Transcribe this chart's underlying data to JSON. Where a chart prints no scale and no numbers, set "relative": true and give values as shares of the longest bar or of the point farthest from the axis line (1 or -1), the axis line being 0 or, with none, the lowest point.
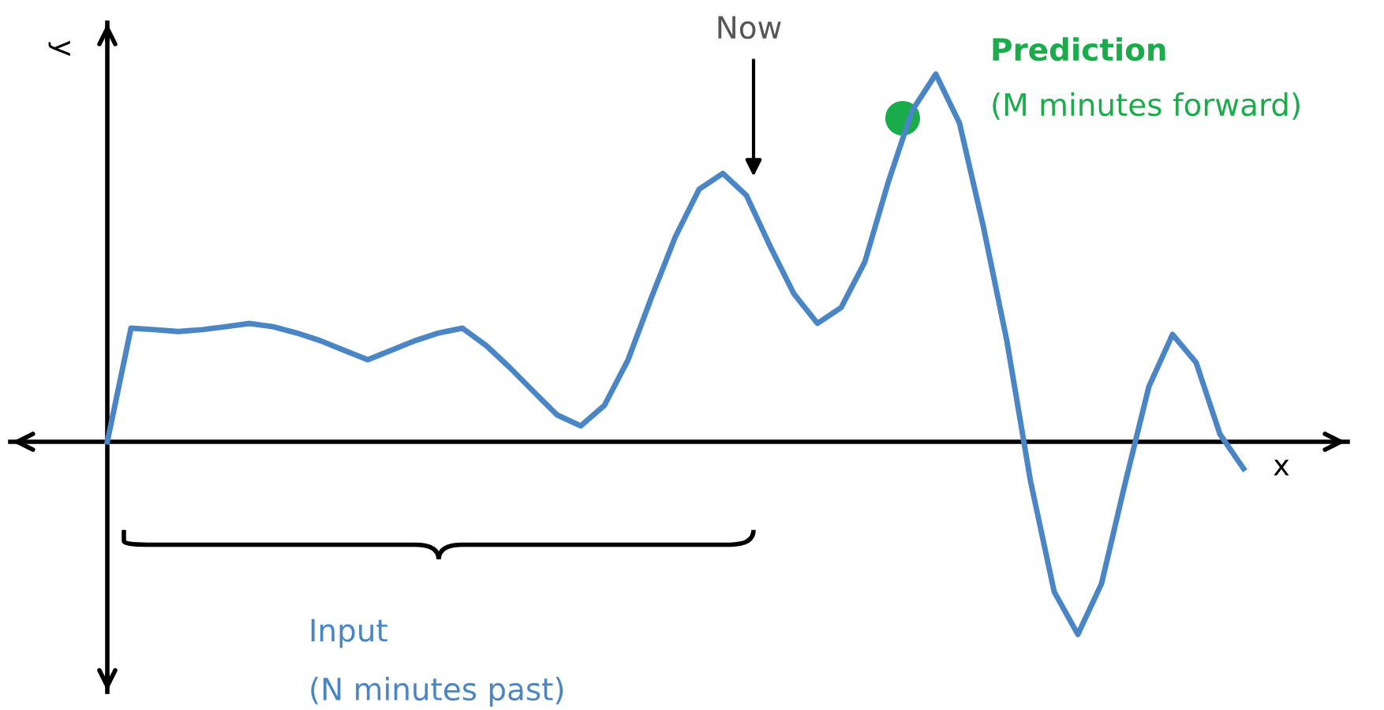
{
  "chart_data": {
    "type": "line",
    "relative": true,
    "xlabel": "x",
    "ylabel": "y",
    "categories": [
      null,
      null,
      null,
      null,
      null,
      null,
      null,
      null,
      null,
      null,
      null,
      null,
      null,
      null,
      null,
      null,
      null,
      null,
      null,
      null,
      null,
      null,
      null,
      null,
      null,
      null,
      null,
      null,
      null,
      null,
      null,
      null,
      null,
      null,
      null,
      null,
      null,
      null,
      null,
      null,
      null,
      null,
      null,
      null,
      null,
      null,
      null,
      null,
      null
    ],
    "series": [
      {
        "color": "#4a86c5",
        "values": [
          0,
          0.309,
          0.305,
          0.3,
          0.305,
          0.313,
          0.322,
          0.313,
          0.296,
          0.275,
          0.249,
          0.223,
          0.249,
          0.275,
          0.296,
          0.309,
          0.262,
          0.202,
          0.137,
          0.073,
          0.043,
          0.099,
          0.223,
          0.395,
          0.558,
          0.687,
          0.73,
          0.67,
          0.532,
          0.403,
          0.322,
          0.365,
          0.489,
          0.708,
          0.901,
          1.0,
          0.867,
          0.588,
          0.275,
          -0.107,
          -0.408,
          -0.524,
          -0.386,
          -0.112,
          0.15,
          0.292,
          0.215,
          0.021,
          -0.073
        ]
      }
    ],
    "annotations": [
      "Now",
      "Prediction",
      "(M minutes forward)",
      "Input",
      "(N minutes past)"
    ]
  }
}
